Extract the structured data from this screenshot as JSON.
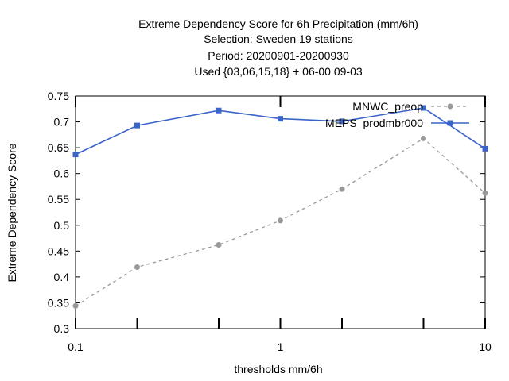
{
  "chart_data": {
    "type": "line",
    "title_lines": [
      "Extreme Dependency Score  for 6h Precipitation (mm/6h)",
      "Selection: Sweden     19 stations",
      "Period: 20200901-20200930",
      "Used {03,06,15,18} + 06-00 09-03"
    ],
    "xlabel": "thresholds mm/6h",
    "ylabel": "Extreme Dependency Score",
    "x_scale": "log",
    "xlim": [
      0.1,
      10
    ],
    "ylim": [
      0.3,
      0.75
    ],
    "x_ticks": [
      0.1,
      1,
      10
    ],
    "x_tick_labels": [
      "0.1",
      "1",
      "10"
    ],
    "x_minor_ticks": [
      0.2,
      0.5,
      2,
      5
    ],
    "y_ticks": [
      0.3,
      0.35,
      0.4,
      0.45,
      0.5,
      0.55,
      0.6,
      0.65,
      0.7,
      0.75
    ],
    "y_tick_labels": [
      "0.3",
      "0.35",
      "0.4",
      "0.45",
      "0.5",
      "0.55",
      "0.6",
      "0.65",
      "0.7",
      "0.75"
    ],
    "grid": false,
    "legend_position": "top-right",
    "x": [
      0.1,
      0.2,
      0.5,
      1,
      2,
      5,
      10
    ],
    "series": [
      {
        "name": "MNWC_preop",
        "values": [
          0.344,
          0.419,
          0.462,
          0.509,
          0.57,
          0.668,
          0.562
        ],
        "color": "#999999",
        "line_style": "dashed",
        "marker": "circle"
      },
      {
        "name": "MEPS_prodmbr000",
        "values": [
          0.637,
          0.693,
          0.722,
          0.706,
          0.701,
          0.727,
          0.648
        ],
        "color": "#3a64c9",
        "line_style": "solid",
        "marker": "square"
      }
    ]
  }
}
